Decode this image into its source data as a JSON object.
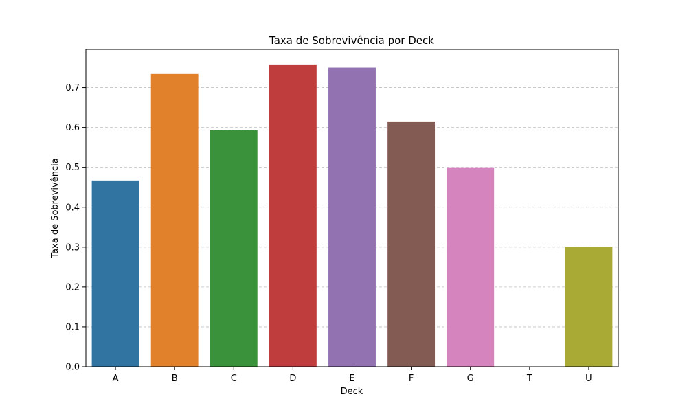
{
  "chart_data": {
    "type": "bar",
    "title": "Taxa de Sobrevivência por Deck",
    "xlabel": "Deck",
    "ylabel": "Taxa de Sobrevivência",
    "categories": [
      "A",
      "B",
      "C",
      "D",
      "E",
      "F",
      "G",
      "T",
      "U"
    ],
    "values": [
      0.467,
      0.734,
      0.593,
      0.758,
      0.75,
      0.615,
      0.5,
      0.0,
      0.3
    ],
    "colors": [
      "#3274a1",
      "#e1812c",
      "#3a923a",
      "#c03d3e",
      "#9372b2",
      "#845b53",
      "#d684bd",
      "#7f7f7f",
      "#a9aa35"
    ],
    "ylim": [
      0,
      0.7957
    ],
    "yticks": [
      0.0,
      0.1,
      0.2,
      0.3,
      0.4,
      0.5,
      0.6,
      0.7
    ],
    "ytick_labels": [
      "0.0",
      "0.1",
      "0.2",
      "0.3",
      "0.4",
      "0.5",
      "0.6",
      "0.7"
    ],
    "grid": "y-dashed",
    "legend": "none"
  }
}
